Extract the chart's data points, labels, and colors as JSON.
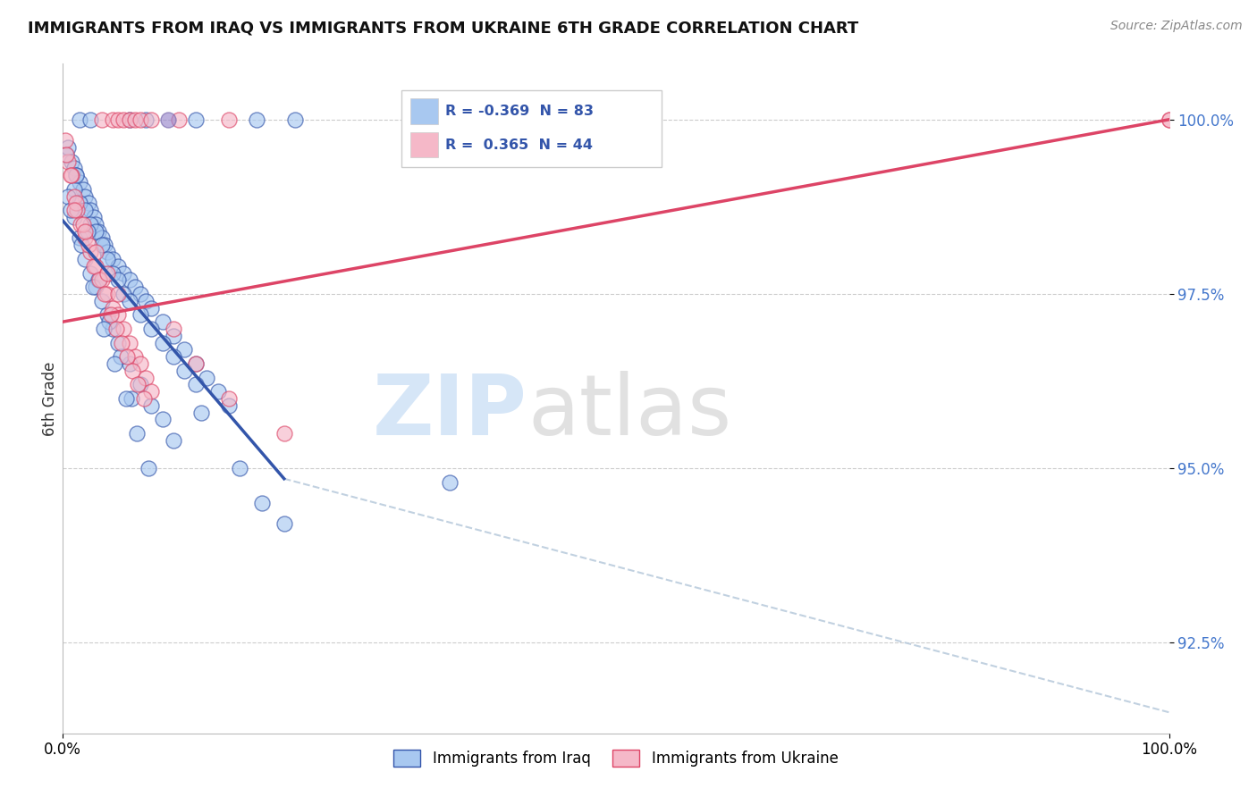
{
  "title": "IMMIGRANTS FROM IRAQ VS IMMIGRANTS FROM UKRAINE 6TH GRADE CORRELATION CHART",
  "source": "Source: ZipAtlas.com",
  "ylabel": "6th Grade",
  "xlim": [
    0,
    100
  ],
  "ylim": [
    91.2,
    100.8
  ],
  "yticks": [
    92.5,
    95.0,
    97.5,
    100.0
  ],
  "ytick_labels": [
    "92.5%",
    "95.0%",
    "97.5%",
    "100.0%"
  ],
  "xtick_labels": [
    "0.0%",
    "100.0%"
  ],
  "color_iraq": "#A8C8F0",
  "color_ukraine": "#F5B8C8",
  "color_trendline_iraq": "#3355AA",
  "color_trendline_ukraine": "#DD4466",
  "color_dashed": "#BBCCDD",
  "iraq_trendline_x": [
    0,
    20
  ],
  "iraq_trendline_y": [
    98.55,
    94.85
  ],
  "ukraine_trendline_x": [
    0,
    100
  ],
  "ukraine_trendline_y": [
    97.1,
    100.0
  ],
  "dashed_line_x": [
    20,
    100
  ],
  "dashed_line_y": [
    94.85,
    91.5
  ],
  "iraq_scatter_x": [
    0.3,
    0.5,
    0.8,
    1.0,
    1.2,
    1.5,
    1.8,
    2.0,
    2.3,
    2.5,
    2.8,
    3.0,
    3.2,
    3.5,
    3.8,
    4.0,
    4.5,
    5.0,
    5.5,
    6.0,
    6.5,
    7.0,
    7.5,
    8.0,
    9.0,
    10.0,
    11.0,
    12.0,
    13.0,
    14.0,
    15.0,
    1.0,
    1.5,
    2.0,
    2.5,
    3.0,
    3.5,
    4.0,
    4.5,
    5.0,
    5.5,
    6.0,
    7.0,
    8.0,
    9.0,
    10.0,
    11.0,
    12.0,
    0.5,
    1.0,
    1.5,
    2.0,
    2.5,
    3.0,
    3.5,
    4.0,
    4.5,
    5.0,
    6.0,
    7.0,
    8.0,
    9.0,
    10.0,
    1.2,
    2.2,
    3.2,
    4.2,
    5.2,
    6.2,
    0.7,
    1.7,
    2.7,
    3.7,
    4.7,
    5.7,
    6.7,
    7.7,
    12.5,
    16.0,
    18.0,
    20.0,
    35.0
  ],
  "iraq_scatter_y": [
    99.5,
    99.6,
    99.4,
    99.3,
    99.2,
    99.1,
    99.0,
    98.9,
    98.8,
    98.7,
    98.6,
    98.5,
    98.4,
    98.3,
    98.2,
    98.1,
    98.0,
    97.9,
    97.8,
    97.7,
    97.6,
    97.5,
    97.4,
    97.3,
    97.1,
    96.9,
    96.7,
    96.5,
    96.3,
    96.1,
    95.9,
    99.0,
    98.8,
    98.7,
    98.5,
    98.4,
    98.2,
    98.0,
    97.8,
    97.7,
    97.5,
    97.4,
    97.2,
    97.0,
    96.8,
    96.6,
    96.4,
    96.2,
    98.9,
    98.6,
    98.3,
    98.0,
    97.8,
    97.6,
    97.4,
    97.2,
    97.0,
    96.8,
    96.5,
    96.2,
    95.9,
    95.7,
    95.4,
    99.2,
    98.4,
    97.7,
    97.1,
    96.6,
    96.0,
    98.7,
    98.2,
    97.6,
    97.0,
    96.5,
    96.0,
    95.5,
    95.0,
    95.8,
    95.0,
    94.5,
    94.2,
    94.8
  ],
  "ukraine_scatter_x": [
    0.2,
    0.5,
    0.8,
    1.0,
    1.3,
    1.6,
    2.0,
    2.5,
    3.0,
    3.5,
    4.0,
    4.5,
    5.0,
    5.5,
    6.0,
    6.5,
    7.0,
    7.5,
    8.0,
    0.3,
    0.7,
    1.2,
    1.8,
    2.3,
    2.8,
    3.3,
    3.8,
    4.3,
    4.8,
    5.3,
    5.8,
    6.3,
    6.8,
    7.3,
    1.0,
    2.0,
    3.0,
    4.0,
    5.0,
    10.0,
    12.0,
    15.0,
    20.0,
    100.0
  ],
  "ukraine_scatter_y": [
    99.7,
    99.4,
    99.2,
    98.9,
    98.7,
    98.5,
    98.3,
    98.1,
    97.9,
    97.7,
    97.5,
    97.3,
    97.2,
    97.0,
    96.8,
    96.6,
    96.5,
    96.3,
    96.1,
    99.5,
    99.2,
    98.8,
    98.5,
    98.2,
    97.9,
    97.7,
    97.5,
    97.2,
    97.0,
    96.8,
    96.6,
    96.4,
    96.2,
    96.0,
    98.7,
    98.4,
    98.1,
    97.8,
    97.5,
    97.0,
    96.5,
    96.0,
    95.5,
    100.0
  ],
  "top_row_iraq_x": [
    1.5,
    2.5,
    6.0,
    7.5,
    12.0,
    17.5,
    21.0
  ],
  "top_row_iraq_y": [
    100.0,
    100.0,
    100.0,
    100.0,
    100.0,
    100.0,
    100.0
  ],
  "top_row_ukraine_x": [
    3.5,
    4.5,
    5.0,
    5.5,
    6.0,
    6.5,
    7.0,
    8.0,
    10.5,
    15.0
  ],
  "top_row_ukraine_y": [
    100.0,
    100.0,
    100.0,
    100.0,
    100.0,
    100.0,
    100.0,
    100.0,
    100.0,
    100.0
  ],
  "top_row_purple_x": [
    9.5
  ],
  "top_row_purple_y": [
    100.0
  ],
  "isolated_ukraine_x": [
    100.0
  ],
  "isolated_ukraine_y": [
    100.0
  ],
  "isolated_iraq_x": [
    35.0
  ],
  "isolated_iraq_y": [
    94.0
  ]
}
